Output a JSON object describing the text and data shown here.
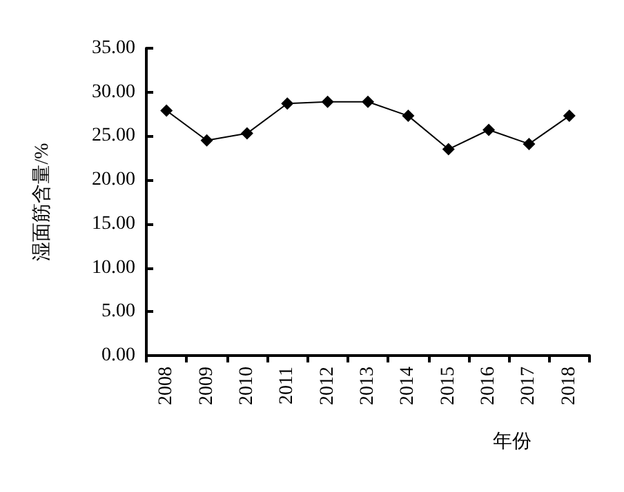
{
  "chart_data": {
    "type": "line",
    "xlabel": "年份",
    "ylabel": "湿面筋含量/%",
    "categories": [
      "2008",
      "2009",
      "2010",
      "2011",
      "2012",
      "2013",
      "2014",
      "2015",
      "2016",
      "2017",
      "2018"
    ],
    "series": [
      {
        "color": "#000000",
        "values": [
          27.9,
          24.5,
          25.3,
          28.7,
          28.9,
          28.9,
          27.3,
          23.5,
          25.7,
          24.1,
          27.3
        ]
      }
    ],
    "ylim": [
      0,
      35
    ],
    "yticks": [
      {
        "value": 0,
        "label": "0.00"
      },
      {
        "value": 5,
        "label": "5.00"
      },
      {
        "value": 10,
        "label": "10.00"
      },
      {
        "value": 15,
        "label": "15.00"
      },
      {
        "value": 20,
        "label": "20.00"
      },
      {
        "value": 25,
        "label": "25.00"
      },
      {
        "value": 30,
        "label": "30.00"
      },
      {
        "value": 35,
        "label": "35.00"
      }
    ],
    "marker": "diamond",
    "line_style": "solid",
    "grid": false
  }
}
